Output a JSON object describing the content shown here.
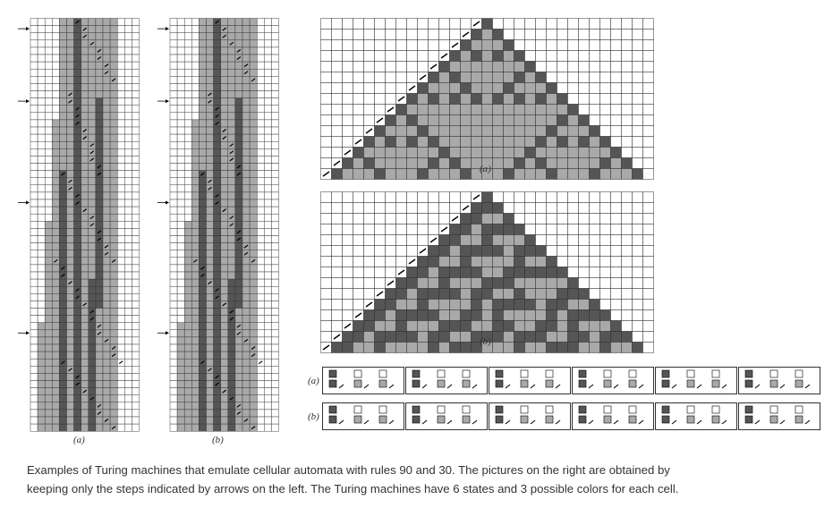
{
  "figure": {
    "panel_labels": {
      "tm_left": "(a)",
      "tm_right": "(b)",
      "ca_top": "(a)",
      "ca_bottom": "(b)",
      "rules_top": "(a)",
      "rules_bottom": "(b)"
    },
    "colors": {
      "white": "#ffffff",
      "gray": "#a9a9a9",
      "dark": "#555555",
      "grid": "#333333"
    },
    "turing_machines": {
      "states": 6,
      "colors": 3
    },
    "cellular_automata": {
      "rules": [
        90,
        30
      ]
    }
  },
  "caption": {
    "line1": "Examples of Turing machines that emulate cellular automata with rules 90 and 30. The pictures on the right are obtained by",
    "line2": "keeping only the steps indicated by arrows on the left. The Turing machines have 6 states and 3 possible colors for each cell."
  }
}
